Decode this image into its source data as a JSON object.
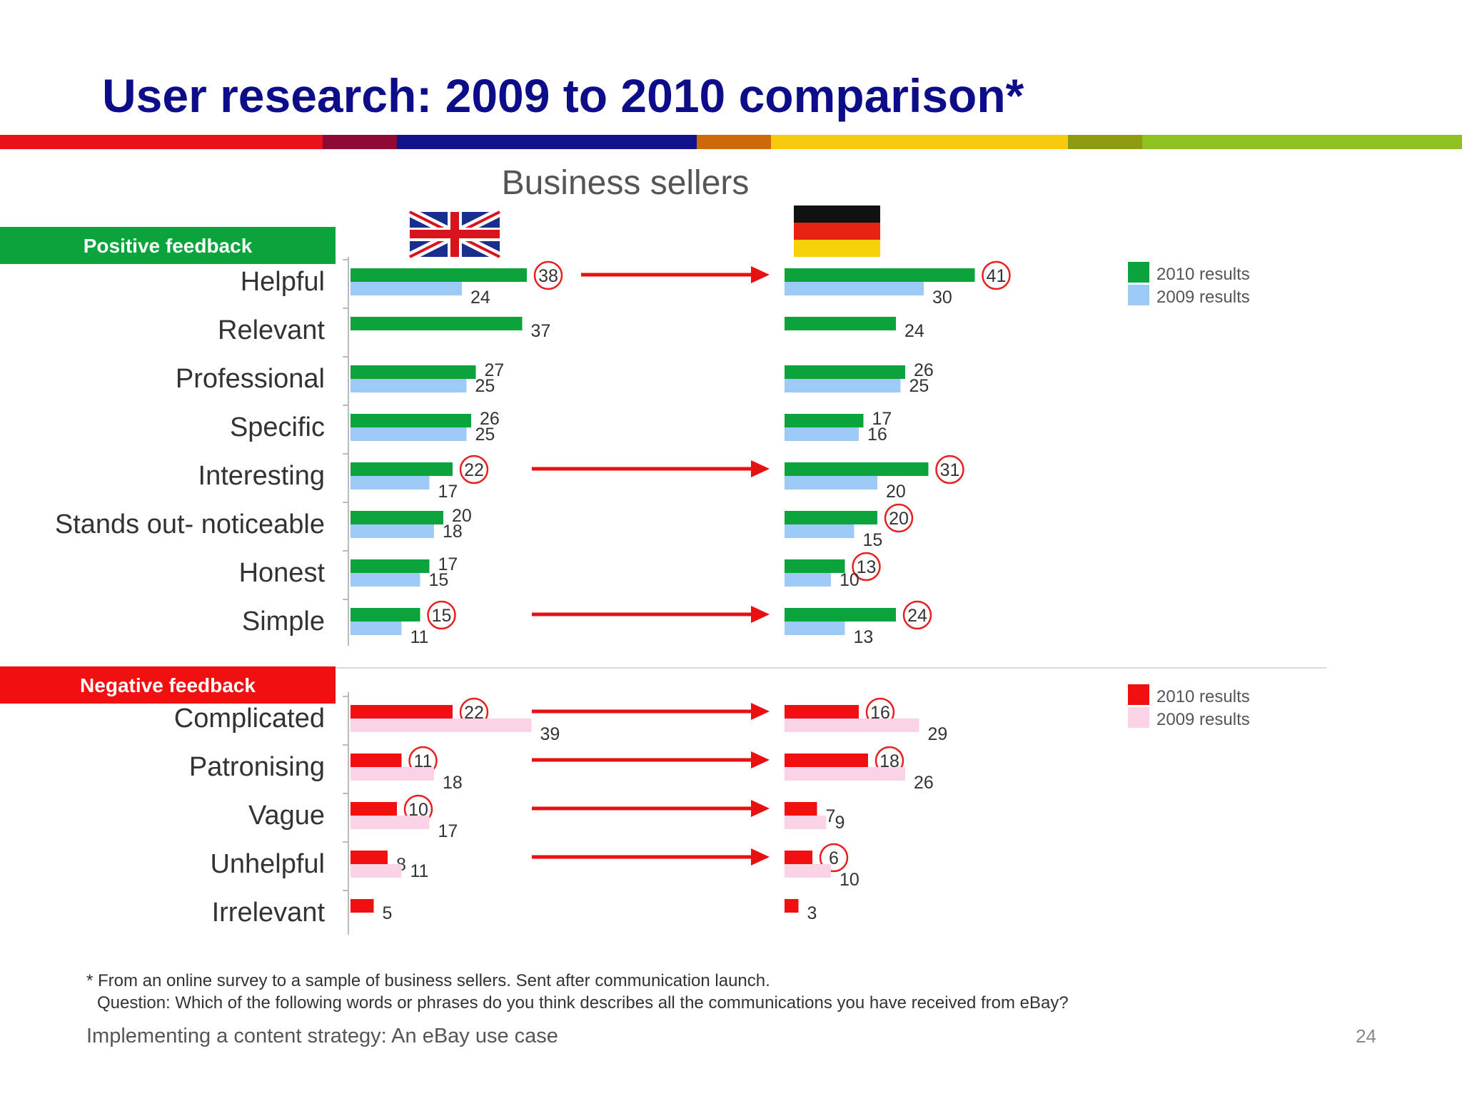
{
  "title": "User research: 2009 to 2010 comparison*",
  "stripe_colors": [
    "#e8121a",
    "#8c0a35",
    "#12128c",
    "#cc6a0a",
    "#f7c90f",
    "#8e9a10",
    "#8dc21f"
  ],
  "footnote_line1": "* From an online survey to a sample of business sellers. Sent after communication launch.",
  "footnote_line2": "Question: Which of the following words or phrases do you think describes all the communications you have received from eBay?",
  "footer": "Implementing a content strategy: An eBay use case",
  "page_number": "24",
  "icons": [
    "uk-flag-icon",
    "germany-flag-icon"
  ],
  "chart_data": {
    "type": "bar",
    "orientation": "horizontal",
    "title": "Business sellers",
    "panels": [
      "UK",
      "Germany"
    ],
    "colors": {
      "positive_2010": "#0aa33c",
      "positive_2009": "#9dcaf7",
      "negative_2010": "#f20f0f",
      "negative_2009": "#fbd3e6",
      "circle": "#e82020",
      "arrow": "#e81010"
    },
    "groups": [
      {
        "label": "Positive feedback",
        "header_color": "#0aa33c",
        "legend": [
          "2010 results",
          "2009 results"
        ],
        "categories": [
          {
            "label": "Helpful",
            "uk": [
              38,
              24
            ],
            "de": [
              41,
              30
            ],
            "circle_uk": true,
            "circle_de": true,
            "arrow": true
          },
          {
            "label": "Relevant",
            "uk": [
              37,
              null
            ],
            "de": [
              24,
              null
            ]
          },
          {
            "label": "Professional",
            "uk": [
              27,
              25
            ],
            "de": [
              26,
              25
            ]
          },
          {
            "label": "Specific",
            "uk": [
              26,
              25
            ],
            "de": [
              17,
              16
            ]
          },
          {
            "label": "Interesting",
            "uk": [
              22,
              17
            ],
            "de": [
              31,
              20
            ],
            "circle_uk": true,
            "circle_de": true,
            "arrow": true
          },
          {
            "label": "Stands out- noticeable",
            "uk": [
              20,
              18
            ],
            "de": [
              20,
              15
            ],
            "circle_de": true
          },
          {
            "label": "Honest",
            "uk": [
              17,
              15
            ],
            "de": [
              13,
              10
            ],
            "circle_de": true
          },
          {
            "label": "Simple",
            "uk": [
              15,
              11
            ],
            "de": [
              24,
              13
            ],
            "circle_uk": true,
            "circle_de": true,
            "arrow": true
          }
        ]
      },
      {
        "label": "Negative feedback",
        "header_color": "#f20f0f",
        "legend": [
          "2010 results",
          "2009 results"
        ],
        "categories": [
          {
            "label": "Complicated",
            "uk": [
              22,
              39
            ],
            "de": [
              16,
              29
            ],
            "circle_uk": true,
            "circle_de": true,
            "arrow": true
          },
          {
            "label": "Patronising",
            "uk": [
              11,
              18
            ],
            "de": [
              18,
              26
            ],
            "circle_uk": true,
            "circle_de": true,
            "arrow": true
          },
          {
            "label": "Vague",
            "uk": [
              10,
              17
            ],
            "de": [
              7,
              9
            ],
            "circle_uk": true,
            "arrow": true
          },
          {
            "label": "Unhelpful",
            "uk": [
              8,
              11
            ],
            "de": [
              6,
              10
            ],
            "circle_de": true,
            "arrow": true
          },
          {
            "label": "Irrelevant",
            "uk": [
              5,
              null
            ],
            "de": [
              3,
              null
            ]
          }
        ]
      }
    ]
  }
}
